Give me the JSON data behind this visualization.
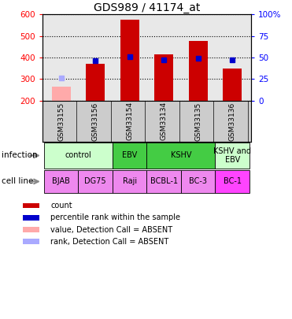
{
  "title": "GDS989 / 41174_at",
  "samples": [
    "GSM33155",
    "GSM33156",
    "GSM33154",
    "GSM33134",
    "GSM33135",
    "GSM33136"
  ],
  "count_values": [
    null,
    370,
    575,
    415,
    475,
    348
  ],
  "count_absent": [
    265,
    null,
    null,
    null,
    null,
    null
  ],
  "rank_values": [
    null,
    46,
    51,
    47,
    49,
    47
  ],
  "rank_absent": [
    26,
    null,
    null,
    null,
    null,
    null
  ],
  "ylim_left": [
    200,
    600
  ],
  "ylim_right": [
    0,
    100
  ],
  "yticks_left": [
    200,
    300,
    400,
    500,
    600
  ],
  "yticks_right": [
    0,
    25,
    50,
    75,
    100
  ],
  "ytick_labels_left": [
    "200",
    "300",
    "400",
    "500",
    "600"
  ],
  "ytick_labels_right": [
    "0",
    "25",
    "50",
    "75",
    "100%"
  ],
  "bar_color": "#cc0000",
  "bar_absent_color": "#ffaaaa",
  "rank_color": "#0000cc",
  "rank_absent_color": "#aaaaff",
  "plot_bg_color": "#e8e8e8",
  "sample_bg_color": "#cccccc",
  "inf_groups": [
    {
      "cols": [
        0,
        1
      ],
      "label": "control",
      "color": "#ccffcc"
    },
    {
      "cols": [
        2
      ],
      "label": "EBV",
      "color": "#44cc44"
    },
    {
      "cols": [
        3,
        4
      ],
      "label": "KSHV",
      "color": "#44cc44"
    },
    {
      "cols": [
        5
      ],
      "label": "KSHV and\nEBV",
      "color": "#ccffcc"
    }
  ],
  "cell_groups": [
    {
      "cols": [
        0
      ],
      "label": "BJAB",
      "color": "#ee88ee"
    },
    {
      "cols": [
        1
      ],
      "label": "DG75",
      "color": "#ee88ee"
    },
    {
      "cols": [
        2
      ],
      "label": "Raji",
      "color": "#ee88ee"
    },
    {
      "cols": [
        3
      ],
      "label": "BCBL-1",
      "color": "#ee88ee"
    },
    {
      "cols": [
        4
      ],
      "label": "BC-3",
      "color": "#ee88ee"
    },
    {
      "cols": [
        5
      ],
      "label": "BC-1",
      "color": "#ff44ff"
    }
  ],
  "legend_items": [
    {
      "color": "#cc0000",
      "label": "count"
    },
    {
      "color": "#0000cc",
      "label": "percentile rank within the sample"
    },
    {
      "color": "#ffaaaa",
      "label": "value, Detection Call = ABSENT"
    },
    {
      "color": "#aaaaff",
      "label": "rank, Detection Call = ABSENT"
    }
  ]
}
